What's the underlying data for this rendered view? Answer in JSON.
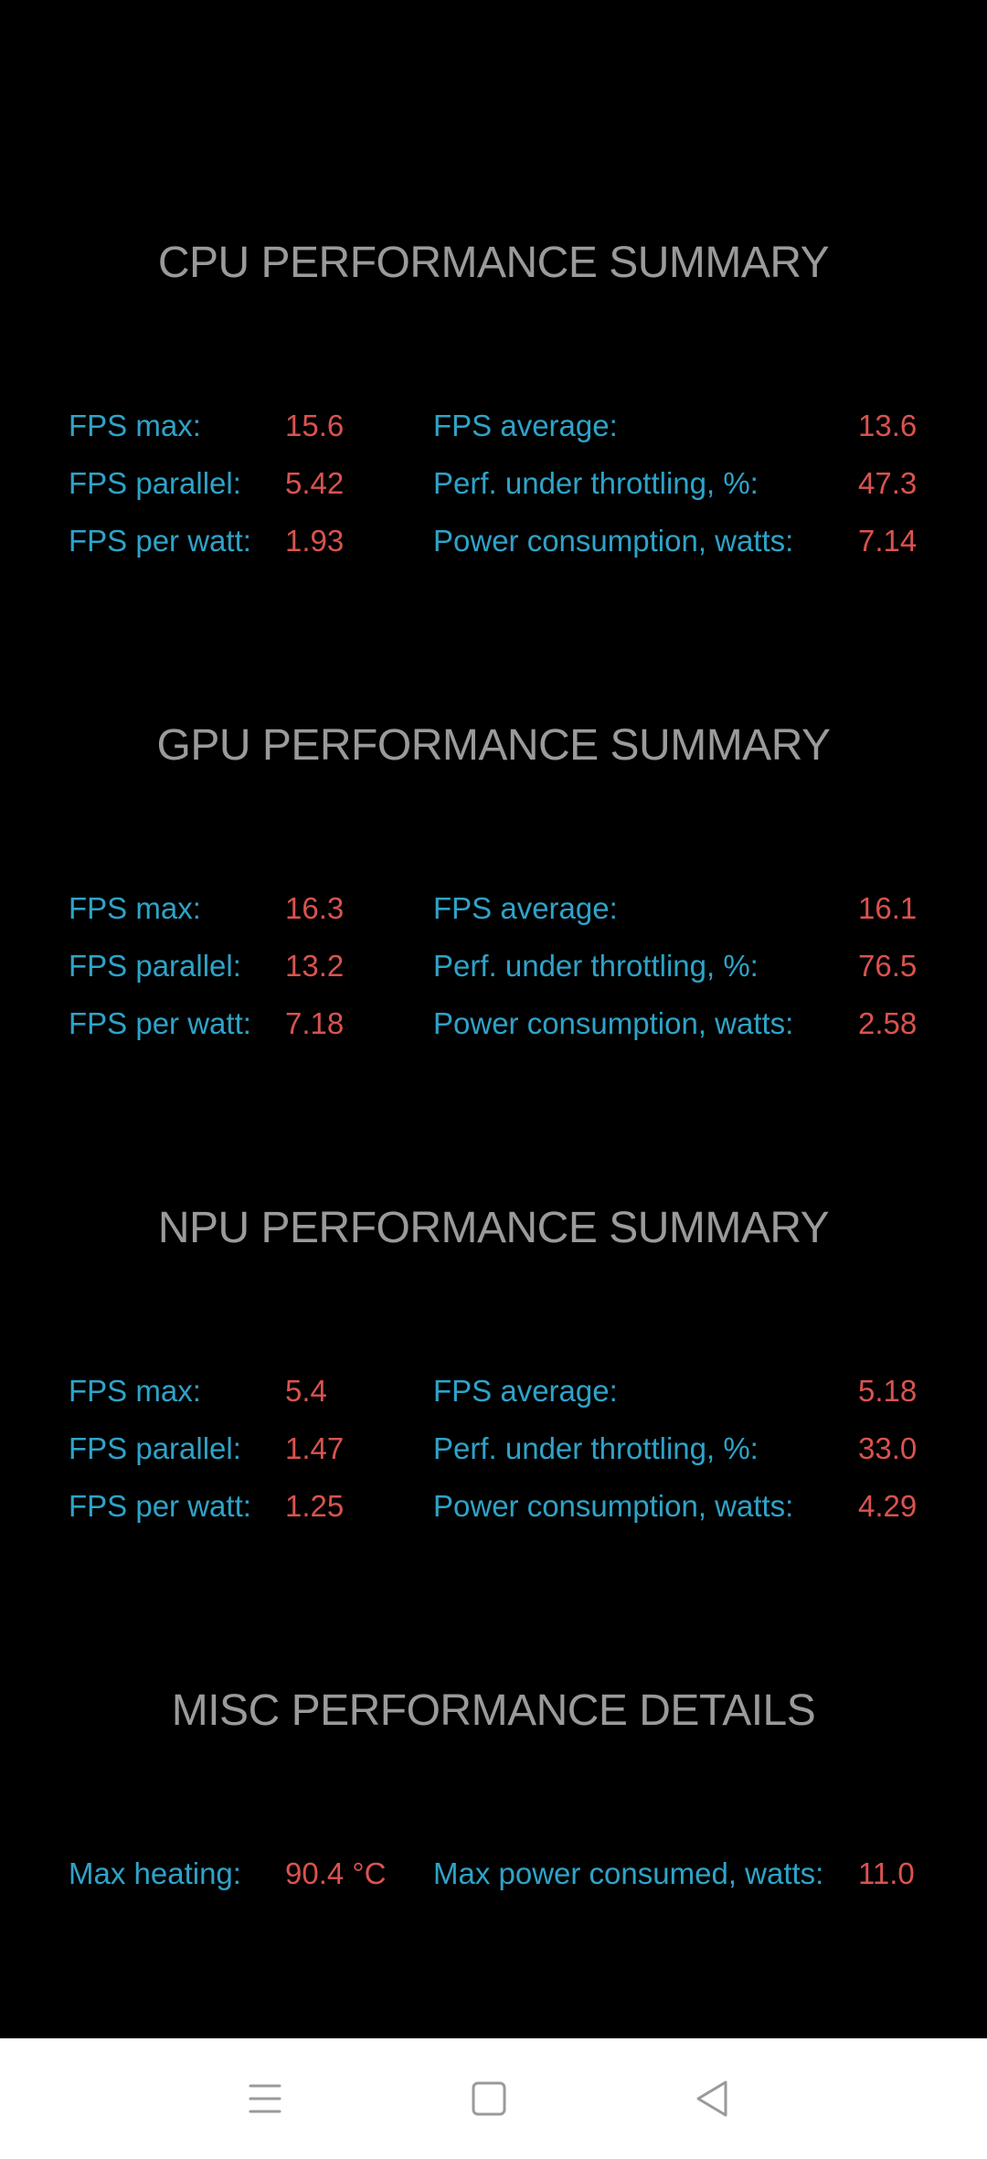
{
  "sections": [
    {
      "title": "CPU PERFORMANCE SUMMARY",
      "rows": [
        {
          "label1": "FPS max:",
          "value1": "15.6",
          "label2": "FPS average:",
          "value2": "13.6"
        },
        {
          "label1": "FPS parallel:",
          "value1": "5.42",
          "label2": "Perf. under throttling, %:",
          "value2": "47.3"
        },
        {
          "label1": "FPS per watt:",
          "value1": "1.93",
          "label2": "Power consumption, watts:",
          "value2": "7.14"
        }
      ]
    },
    {
      "title": "GPU PERFORMANCE SUMMARY",
      "rows": [
        {
          "label1": "FPS max:",
          "value1": "16.3",
          "label2": "FPS average:",
          "value2": "16.1"
        },
        {
          "label1": "FPS parallel:",
          "value1": "13.2",
          "label2": "Perf. under throttling, %:",
          "value2": "76.5"
        },
        {
          "label1": "FPS per watt:",
          "value1": "7.18",
          "label2": "Power consumption, watts:",
          "value2": "2.58"
        }
      ]
    },
    {
      "title": "NPU PERFORMANCE SUMMARY",
      "rows": [
        {
          "label1": "FPS max:",
          "value1": "5.4",
          "label2": "FPS average:",
          "value2": "5.18"
        },
        {
          "label1": "FPS parallel:",
          "value1": "1.47",
          "label2": "Perf. under throttling, %:",
          "value2": "33.0"
        },
        {
          "label1": "FPS per watt:",
          "value1": "1.25",
          "label2": "Power consumption, watts:",
          "value2": "4.29"
        }
      ]
    },
    {
      "title": "MISC PERFORMANCE DETAILS",
      "rows": [
        {
          "label1": "Max heating:",
          "value1": "90.4 °C",
          "label2": "Max power consumed, watts:",
          "value2": "11.0"
        }
      ]
    }
  ],
  "colors": {
    "background": "#000000",
    "title": "#9a9a9a",
    "label": "#2fa3c8",
    "value": "#d9534f",
    "navbar": "#ffffff",
    "nav_icon": "#9a9a9a"
  },
  "navbar": {
    "icons": [
      "menu-icon",
      "home-icon",
      "back-icon"
    ]
  }
}
